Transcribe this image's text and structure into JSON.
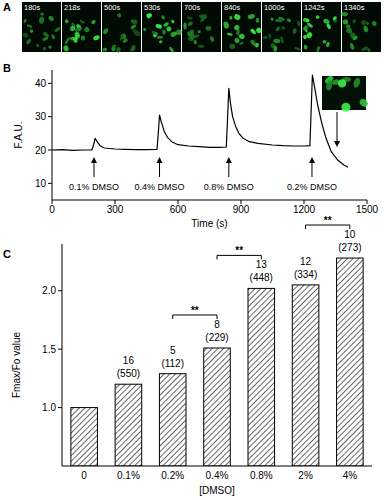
{
  "image_strip": {
    "panel": "A",
    "frames": [
      "180s",
      "218s",
      "500s",
      "530s",
      "700s",
      "840s",
      "1000s",
      "1242s",
      "1340s"
    ]
  },
  "chart_data": [
    {
      "type": "line",
      "panel": "B",
      "y_label": "F.A.U.",
      "x_label": "Time (s)",
      "color": "#000000",
      "x": [
        0,
        50,
        100,
        150,
        190,
        200,
        205,
        215,
        230,
        250,
        300,
        350,
        400,
        450,
        500,
        505,
        512,
        520,
        535,
        550,
        570,
        600,
        650,
        700,
        750,
        800,
        830,
        835,
        842,
        850,
        860,
        875,
        890,
        910,
        940,
        980,
        1050,
        1100,
        1150,
        1200,
        1228,
        1233,
        1240,
        1250,
        1265,
        1285,
        1305,
        1330,
        1360,
        1390,
        1410
      ],
      "values": [
        20,
        20.1,
        19.9,
        20,
        20,
        22,
        23.5,
        22.5,
        21.2,
        20.6,
        20.3,
        20.2,
        20.1,
        20.1,
        20.2,
        24,
        30.5,
        28.5,
        25.5,
        23.8,
        22.5,
        21.6,
        21.2,
        21,
        20.8,
        20.8,
        20.9,
        28,
        38.5,
        34,
        30,
        27,
        25,
        23.5,
        22.5,
        22,
        21.5,
        21.3,
        21.2,
        21.2,
        21.3,
        30,
        42.5,
        39,
        33.5,
        28,
        23.5,
        19.5,
        17,
        15.5,
        14.8
      ],
      "xlim": [
        0,
        1500
      ],
      "xticks": [
        0,
        300,
        600,
        900,
        1200,
        1500
      ],
      "ylim": [
        5,
        44
      ],
      "yticks": [
        10,
        20,
        30,
        40
      ],
      "annotations": [
        {
          "text": "0.1% DMSO",
          "x": 200
        },
        {
          "text": "0.4% DMSO",
          "x": 512
        },
        {
          "text": "0.8% DMSO",
          "x": 842
        },
        {
          "text": "0.2% DMSO",
          "x": 1238
        }
      ]
    },
    {
      "type": "bar",
      "panel": "C",
      "y_label": "Fmax/Fo value",
      "x_label": "[DMSO]",
      "color": "#000000",
      "categories": [
        "0",
        "0.1%",
        "0.2%",
        "0.4%",
        "0.8%",
        "2%",
        "4%"
      ],
      "values": [
        1.0,
        1.2,
        1.29,
        1.51,
        2.02,
        2.05,
        2.28
      ],
      "ylim": [
        0.5,
        2.4
      ],
      "yticks": [
        {
          "value": 1,
          "label": "1.0"
        },
        {
          "value": 1.5,
          "label": "1.5"
        },
        {
          "value": 2,
          "label": "2.0"
        }
      ],
      "bar_annotations": [
        null,
        {
          "n": "16",
          "cells": "(550)"
        },
        {
          "n": "5",
          "cells": "(112)"
        },
        {
          "n": "8",
          "cells": "(229)"
        },
        {
          "n": "13",
          "cells": "(448)"
        },
        {
          "n": "12",
          "cells": "(334)"
        },
        {
          "n": "10",
          "cells": "(273)"
        }
      ],
      "significance": [
        {
          "from": "0.2%",
          "to": "0.4%",
          "label": "**"
        },
        {
          "from": "0.4%",
          "to": "0.8%",
          "label": "**"
        },
        {
          "from": "2%",
          "to": "4%",
          "label": "**"
        }
      ]
    }
  ]
}
